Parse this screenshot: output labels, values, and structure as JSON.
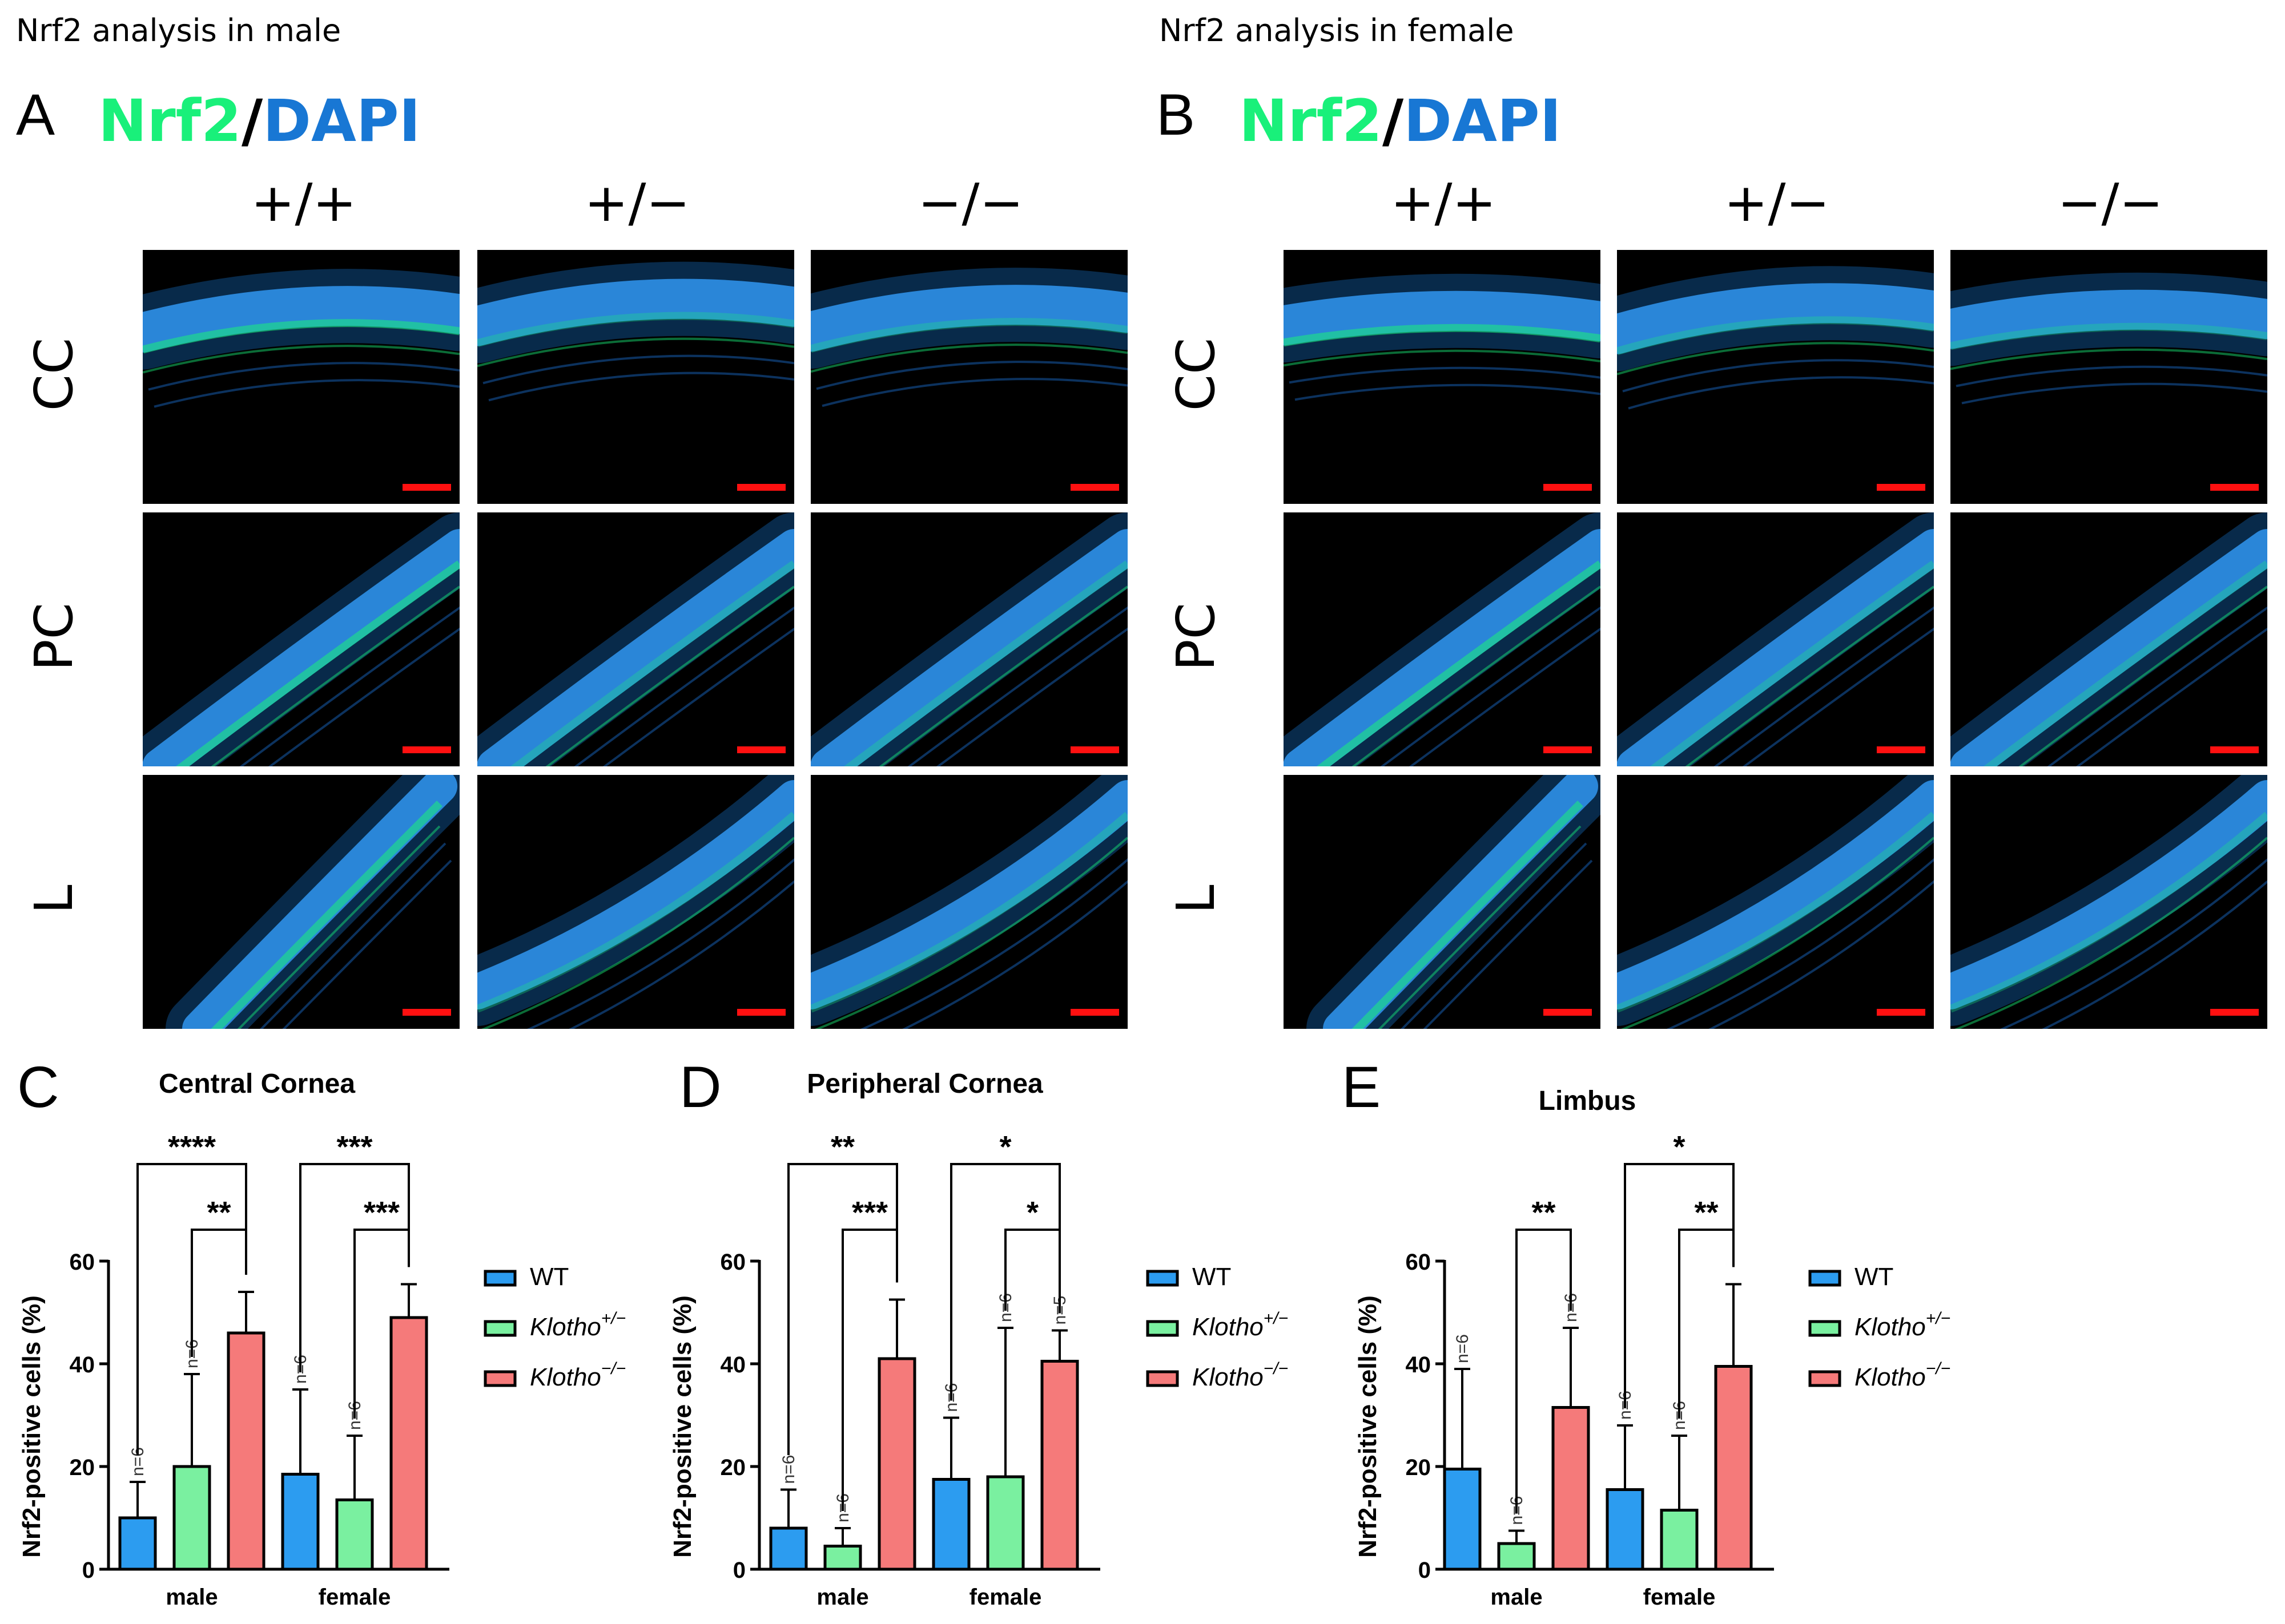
{
  "headers": {
    "male_title": "Nrf2 analysis in male",
    "female_title": "Nrf2 analysis in female"
  },
  "panels": {
    "A": {
      "letter": "A",
      "stain_nrf2": "Nrf2",
      "stain_slash": "/",
      "stain_dapi": "DAPI"
    },
    "B": {
      "letter": "B",
      "stain_nrf2": "Nrf2",
      "stain_slash": "/",
      "stain_dapi": "DAPI"
    }
  },
  "genotypes": [
    "+/+",
    "+/−",
    "−/−"
  ],
  "rows": [
    "CC",
    "PC",
    "L"
  ],
  "colors": {
    "nrf2": "#19f07a",
    "dapi": "#1877d4",
    "wt": "#2c9cf0",
    "het": "#7af0a0",
    "ko": "#f57a7a",
    "scalebar": "#ff1010"
  },
  "legend": {
    "wt": "WT",
    "het_base": "Klotho",
    "het_sup": "+/−",
    "ko_base": "Klotho",
    "ko_sup": "−/−"
  },
  "chart_data": [
    {
      "letter": "C",
      "type": "bar",
      "title": "Central Cornea",
      "ylabel": "Nrf2-positive cells (%)",
      "ylim": [
        0,
        60
      ],
      "yticks": [
        "0",
        "20",
        "40",
        "60"
      ],
      "categories": [
        "male",
        "female"
      ],
      "series": [
        {
          "name": "WT",
          "values": [
            10,
            18.5
          ],
          "err": [
            7,
            16.5
          ],
          "n": [
            "n=6",
            "n=6"
          ]
        },
        {
          "name": "Klotho+/−",
          "values": [
            20,
            13.5
          ],
          "err": [
            18,
            12.5
          ],
          "n": [
            "n=6",
            "n=6"
          ]
        },
        {
          "name": "Klotho−/−",
          "values": [
            46,
            49
          ],
          "err": [
            8,
            6.5
          ],
          "n": [
            "",
            ""
          ]
        }
      ],
      "significance": [
        {
          "category": "male",
          "from": 0,
          "to": 2,
          "label": "****"
        },
        {
          "category": "male",
          "from": 1,
          "to": 2,
          "label": "**"
        },
        {
          "category": "female",
          "from": 0,
          "to": 2,
          "label": "***"
        },
        {
          "category": "female",
          "from": 1,
          "to": 2,
          "label": "***"
        }
      ]
    },
    {
      "letter": "D",
      "type": "bar",
      "title": "Peripheral Cornea",
      "ylabel": "Nrf2-positive cells (%)",
      "ylim": [
        0,
        60
      ],
      "yticks": [
        "0",
        "20",
        "40",
        "60"
      ],
      "categories": [
        "male",
        "female"
      ],
      "series": [
        {
          "name": "WT",
          "values": [
            8,
            17.5
          ],
          "err": [
            7.5,
            12
          ],
          "n": [
            "n=6",
            "n=6"
          ]
        },
        {
          "name": "Klotho+/−",
          "values": [
            4.5,
            18
          ],
          "err": [
            3.5,
            29
          ],
          "n": [
            "n=6",
            "n=6"
          ]
        },
        {
          "name": "Klotho−/−",
          "values": [
            41,
            40.5
          ],
          "err": [
            11.5,
            6
          ],
          "n": [
            "",
            "n=5"
          ]
        }
      ],
      "significance": [
        {
          "category": "male",
          "from": 0,
          "to": 2,
          "label": "**"
        },
        {
          "category": "male",
          "from": 1,
          "to": 2,
          "label": "***"
        },
        {
          "category": "female",
          "from": 0,
          "to": 2,
          "label": "*"
        },
        {
          "category": "female",
          "from": 1,
          "to": 2,
          "label": "*"
        }
      ]
    },
    {
      "letter": "E",
      "type": "bar",
      "title": "Limbus",
      "ylabel": "Nrf2-positive cells (%)",
      "ylim": [
        0,
        60
      ],
      "yticks": [
        "0",
        "20",
        "40",
        "60"
      ],
      "categories": [
        "male",
        "female"
      ],
      "series": [
        {
          "name": "WT",
          "values": [
            19.5,
            15.5
          ],
          "err": [
            19.5,
            12.5
          ],
          "n": [
            "n=6",
            "n=6"
          ]
        },
        {
          "name": "Klotho+/−",
          "values": [
            5,
            11.5
          ],
          "err": [
            2.5,
            14.5
          ],
          "n": [
            "n=6",
            "n=6"
          ]
        },
        {
          "name": "Klotho−/−",
          "values": [
            31.5,
            39.5
          ],
          "err": [
            15.5,
            16
          ],
          "n": [
            "n=6",
            ""
          ]
        }
      ],
      "significance": [
        {
          "category": "male",
          "from": 1,
          "to": 2,
          "label": "**"
        },
        {
          "category": "female",
          "from": 0,
          "to": 2,
          "label": "*"
        },
        {
          "category": "female",
          "from": 1,
          "to": 2,
          "label": "**"
        }
      ]
    }
  ]
}
